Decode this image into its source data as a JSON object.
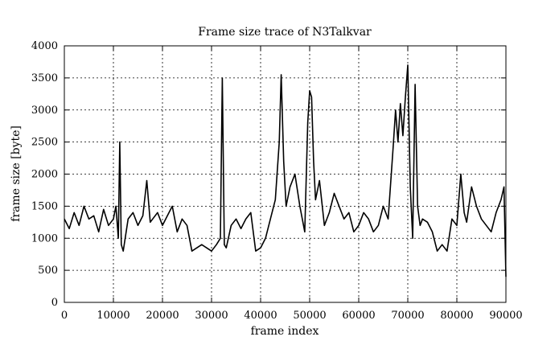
{
  "chart_data": {
    "type": "line",
    "title": "Frame size trace of N3Talkvar",
    "xlabel": "frame index",
    "ylabel": "frame size [byte]",
    "xlim": [
      0,
      90000
    ],
    "ylim": [
      0,
      4000
    ],
    "x_ticks": [
      0,
      10000,
      20000,
      30000,
      40000,
      50000,
      60000,
      70000,
      80000,
      90000
    ],
    "y_ticks": [
      0,
      500,
      1000,
      1500,
      2000,
      2500,
      3000,
      3500,
      4000
    ],
    "grid": true,
    "legend": "none",
    "series": [
      {
        "color": "#000000",
        "x": [
          0,
          1000,
          2000,
          3000,
          4000,
          5000,
          6000,
          7000,
          8000,
          9000,
          10000,
          10500,
          11000,
          11300,
          11600,
          12000,
          13000,
          14000,
          15000,
          16000,
          16800,
          17500,
          18000,
          19000,
          20000,
          21000,
          22000,
          23000,
          24000,
          25000,
          26000,
          27000,
          28000,
          29000,
          30000,
          31000,
          31800,
          32200,
          32600,
          33000,
          34000,
          35000,
          36000,
          37000,
          38000,
          39000,
          40000,
          41000,
          42000,
          43000,
          43800,
          44200,
          44700,
          45200,
          46000,
          47000,
          48000,
          49000,
          49600,
          50000,
          50400,
          50800,
          51200,
          52000,
          53000,
          54000,
          55000,
          56000,
          57000,
          58000,
          59000,
          60000,
          61000,
          62000,
          63000,
          64000,
          65000,
          66000,
          67000,
          67500,
          68000,
          68500,
          69000,
          69500,
          70000,
          70500,
          71000,
          71500,
          72000,
          72500,
          73000,
          74000,
          75000,
          76000,
          77000,
          78000,
          79000,
          80000,
          80800,
          81500,
          82000,
          83000,
          84000,
          85000,
          86000,
          87000,
          88000,
          89000,
          89600,
          90000
        ],
        "y": [
          1300,
          1150,
          1400,
          1200,
          1500,
          1300,
          1350,
          1100,
          1450,
          1200,
          1300,
          1500,
          1000,
          2500,
          900,
          800,
          1300,
          1400,
          1200,
          1350,
          1900,
          1250,
          1300,
          1400,
          1200,
          1350,
          1500,
          1100,
          1300,
          1200,
          800,
          850,
          900,
          850,
          800,
          900,
          1000,
          3500,
          900,
          850,
          1200,
          1300,
          1150,
          1300,
          1400,
          800,
          850,
          1000,
          1300,
          1600,
          2500,
          3550,
          2200,
          1500,
          1800,
          2000,
          1500,
          1100,
          2800,
          3300,
          3200,
          2200,
          1600,
          1900,
          1200,
          1400,
          1700,
          1500,
          1300,
          1400,
          1100,
          1200,
          1400,
          1300,
          1100,
          1200,
          1500,
          1300,
          2400,
          3000,
          2500,
          3100,
          2600,
          3200,
          3700,
          1800,
          1000,
          3400,
          1500,
          1200,
          1300,
          1250,
          1100,
          800,
          900,
          800,
          1300,
          1200,
          2000,
          1400,
          1250,
          1800,
          1500,
          1300,
          1200,
          1100,
          1400,
          1600,
          1800,
          400
        ]
      }
    ]
  }
}
